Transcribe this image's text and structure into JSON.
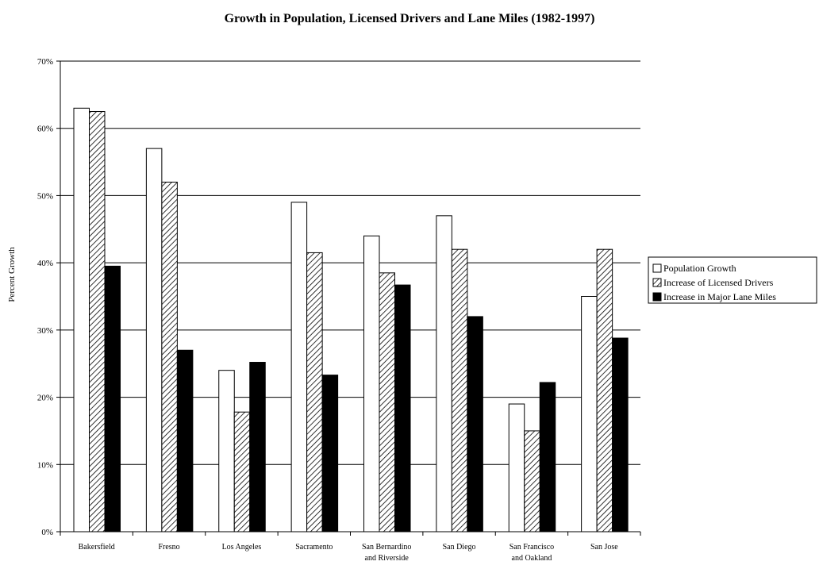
{
  "chart_data": {
    "type": "bar",
    "title": "Growth in Population, Licensed Drivers and Lane Miles (1982-1997)",
    "xlabel": "",
    "ylabel": "Percent Growth",
    "ylim": [
      0,
      70
    ],
    "yticks": [
      "0%",
      "10%",
      "20%",
      "30%",
      "40%",
      "50%",
      "60%",
      "70%"
    ],
    "ytick_values": [
      0,
      10,
      20,
      30,
      40,
      50,
      60,
      70
    ],
    "grid": true,
    "legend_position": "right",
    "categories": [
      [
        "Bakersfield"
      ],
      [
        "Fresno"
      ],
      [
        "Los Angeles"
      ],
      [
        "Sacramento"
      ],
      [
        "San Bernardino",
        "and Riverside"
      ],
      [
        "San Diego"
      ],
      [
        "San Francisco",
        "and Oakland"
      ],
      [
        "San Jose"
      ]
    ],
    "series": [
      {
        "name": "Population Growth",
        "pattern": "white",
        "values": [
          63,
          57,
          24,
          49,
          44,
          47,
          19,
          35
        ]
      },
      {
        "name": "Increase of Licensed Drivers",
        "pattern": "hatched",
        "values": [
          62.5,
          52,
          17.8,
          41.5,
          38.5,
          42,
          15,
          42
        ]
      },
      {
        "name": "Increase in Major Lane Miles",
        "pattern": "black",
        "values": [
          39.5,
          27,
          25.2,
          23.3,
          36.7,
          32,
          22.2,
          28.8
        ]
      }
    ]
  }
}
